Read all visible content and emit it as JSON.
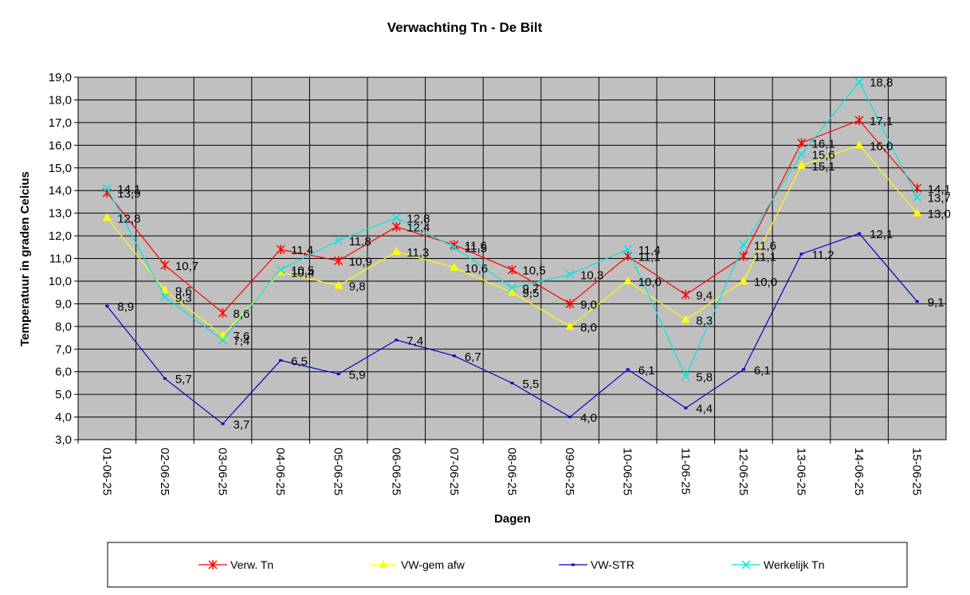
{
  "chart_data": {
    "type": "line",
    "title": "Verwachting Tn - De Bilt",
    "xlabel": "Dagen",
    "ylabel": "Temperatuur in graden Celcius",
    "ylim": [
      3.0,
      19.0
    ],
    "ytick_step": 1.0,
    "grid": true,
    "legend_position": "bottom",
    "categories": [
      "01-06-25",
      "02-06-25",
      "03-06-25",
      "04-06-25",
      "05-06-25",
      "06-06-25",
      "07-06-25",
      "08-06-25",
      "09-06-25",
      "10-06-25",
      "11-06-25",
      "12-06-25",
      "13-06-25",
      "14-06-25",
      "15-06-25"
    ],
    "series": [
      {
        "name": "Verw. Tn",
        "color": "#ff0000",
        "marker": "star",
        "values": [
          13.9,
          10.7,
          8.6,
          11.4,
          10.9,
          12.4,
          11.6,
          10.5,
          9.0,
          11.1,
          9.4,
          11.1,
          16.1,
          17.1,
          14.1
        ]
      },
      {
        "name": "VW-gem afw",
        "color": "#ffff00",
        "marker": "triangle",
        "values": [
          12.8,
          9.6,
          7.6,
          10.4,
          9.8,
          11.3,
          10.6,
          9.5,
          8.0,
          10.0,
          8.3,
          10.0,
          15.1,
          16.0,
          13.0
        ]
      },
      {
        "name": "VW-STR",
        "color": "#0000cc",
        "marker": "dash",
        "values": [
          8.9,
          5.7,
          3.7,
          6.5,
          5.9,
          7.4,
          6.7,
          5.5,
          4.0,
          6.1,
          4.4,
          6.1,
          11.2,
          12.1,
          9.1
        ]
      },
      {
        "name": "Werkelijk Tn",
        "color": "#00e5e5",
        "marker": "x",
        "values": [
          14.1,
          9.3,
          7.4,
          10.5,
          11.8,
          12.8,
          11.5,
          9.7,
          10.3,
          11.4,
          5.8,
          11.6,
          15.6,
          18.8,
          13.7
        ]
      }
    ]
  }
}
